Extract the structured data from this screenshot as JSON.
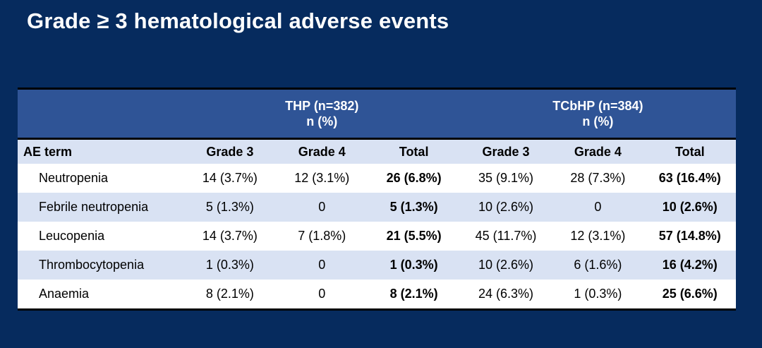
{
  "slide": {
    "title": "Grade ≥ 3 hematological adverse events",
    "colors": {
      "background": "#062b5e",
      "group_header_blue": "#2f5496",
      "row_alt_blue": "#d9e2f3",
      "row_white": "#ffffff",
      "border_black": "#000000",
      "title_text": "#ffffff"
    }
  },
  "table": {
    "group_headers": [
      {
        "line1": "THP (n=382)",
        "line2": "n (%)"
      },
      {
        "line1": "TCbHP (n=384)",
        "line2": "n (%)"
      }
    ],
    "column_headers": [
      "AE term",
      "Grade 3",
      "Grade 4",
      "Total",
      "Grade 3",
      "Grade 4",
      "Total"
    ],
    "rows": [
      {
        "term": "Neutropenia",
        "thp_g3": "14 (3.7%)",
        "thp_g4": "12 (3.1%)",
        "thp_total": "26 (6.8%)",
        "tcbhp_g3": "35 (9.1%)",
        "tcbhp_g4": "28 (7.3%)",
        "tcbhp_total": "63 (16.4%)"
      },
      {
        "term": "Febrile neutropenia",
        "thp_g3": "5 (1.3%)",
        "thp_g4": "0",
        "thp_total": "5 (1.3%)",
        "tcbhp_g3": "10 (2.6%)",
        "tcbhp_g4": "0",
        "tcbhp_total": "10 (2.6%)"
      },
      {
        "term": "Leucopenia",
        "thp_g3": "14 (3.7%)",
        "thp_g4": "7 (1.8%)",
        "thp_total": "21 (5.5%)",
        "tcbhp_g3": "45 (11.7%)",
        "tcbhp_g4": "12 (3.1%)",
        "tcbhp_total": "57 (14.8%)"
      },
      {
        "term": "Thrombocytopenia",
        "thp_g3": "1 (0.3%)",
        "thp_g4": "0",
        "thp_total": "1 (0.3%)",
        "tcbhp_g3": "10 (2.6%)",
        "tcbhp_g4": "6 (1.6%)",
        "tcbhp_total": "16 (4.2%)"
      },
      {
        "term": "Anaemia",
        "thp_g3": "8 (2.1%)",
        "thp_g4": "0",
        "thp_total": "8 (2.1%)",
        "tcbhp_g3": "24 (6.3%)",
        "tcbhp_g4": "1 (0.3%)",
        "tcbhp_total": "25 (6.6%)"
      }
    ]
  }
}
